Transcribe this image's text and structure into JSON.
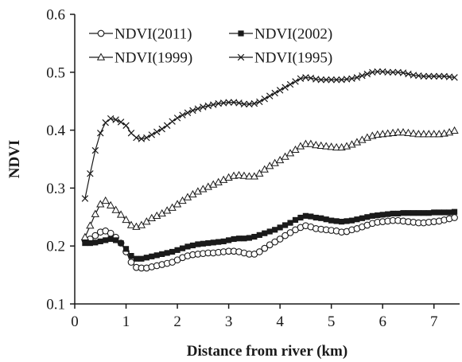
{
  "chart_data": {
    "type": "line",
    "title": "",
    "xlabel": "Distance from river (km)",
    "ylabel": "NDVI",
    "xlim": [
      0,
      7.5
    ],
    "ylim": [
      0.1,
      0.6
    ],
    "xticks": [
      0,
      1,
      2,
      3,
      4,
      5,
      6,
      7
    ],
    "xtick_labels": [
      "0",
      "1",
      "2",
      "3",
      "4",
      "5",
      "6",
      "7"
    ],
    "yticks": [
      0.1,
      0.2,
      0.3,
      0.4,
      0.5,
      0.6
    ],
    "ytick_labels": [
      "0.1",
      "0.2",
      "0.3",
      "0.4",
      "0.5",
      "0.6"
    ],
    "grid": false,
    "legend_position": "top-left",
    "x": [
      0.2,
      0.3,
      0.4,
      0.5,
      0.6,
      0.7,
      0.8,
      0.9,
      1.0,
      1.1,
      1.2,
      1.3,
      1.4,
      1.5,
      1.6,
      1.7,
      1.8,
      1.9,
      2.0,
      2.1,
      2.2,
      2.3,
      2.4,
      2.5,
      2.6,
      2.7,
      2.8,
      2.9,
      3.0,
      3.1,
      3.2,
      3.3,
      3.4,
      3.5,
      3.6,
      3.7,
      3.8,
      3.9,
      4.0,
      4.1,
      4.2,
      4.3,
      4.4,
      4.5,
      4.6,
      4.7,
      4.8,
      4.9,
      5.0,
      5.1,
      5.2,
      5.3,
      5.4,
      5.5,
      5.6,
      5.7,
      5.8,
      5.9,
      6.0,
      6.1,
      6.2,
      6.3,
      6.4,
      6.5,
      6.6,
      6.7,
      6.8,
      6.9,
      7.0,
      7.1,
      7.2,
      7.3,
      7.4
    ],
    "series": [
      {
        "name": "NDVI(2011)",
        "marker": "open-circle",
        "values": [
          0.21,
          0.212,
          0.218,
          0.224,
          0.226,
          0.222,
          0.215,
          0.205,
          0.19,
          0.172,
          0.163,
          0.162,
          0.162,
          0.164,
          0.166,
          0.168,
          0.17,
          0.172,
          0.176,
          0.18,
          0.183,
          0.185,
          0.186,
          0.187,
          0.188,
          0.188,
          0.189,
          0.19,
          0.191,
          0.191,
          0.19,
          0.188,
          0.186,
          0.186,
          0.19,
          0.196,
          0.202,
          0.207,
          0.212,
          0.218,
          0.223,
          0.228,
          0.232,
          0.235,
          0.233,
          0.23,
          0.229,
          0.228,
          0.227,
          0.226,
          0.224,
          0.225,
          0.228,
          0.23,
          0.233,
          0.236,
          0.239,
          0.241,
          0.242,
          0.243,
          0.244,
          0.244,
          0.243,
          0.242,
          0.241,
          0.24,
          0.24,
          0.241,
          0.242,
          0.243,
          0.245,
          0.247,
          0.249
        ]
      },
      {
        "name": "NDVI(2002)",
        "marker": "filled-square",
        "values": [
          0.205,
          0.205,
          0.206,
          0.208,
          0.21,
          0.212,
          0.21,
          0.205,
          0.195,
          0.183,
          0.178,
          0.178,
          0.18,
          0.182,
          0.184,
          0.186,
          0.188,
          0.19,
          0.193,
          0.196,
          0.199,
          0.201,
          0.203,
          0.204,
          0.205,
          0.206,
          0.207,
          0.208,
          0.21,
          0.212,
          0.213,
          0.213,
          0.214,
          0.216,
          0.219,
          0.222,
          0.225,
          0.228,
          0.232,
          0.236,
          0.24,
          0.245,
          0.249,
          0.252,
          0.251,
          0.249,
          0.248,
          0.246,
          0.244,
          0.243,
          0.242,
          0.243,
          0.244,
          0.246,
          0.248,
          0.25,
          0.252,
          0.253,
          0.254,
          0.255,
          0.256,
          0.256,
          0.257,
          0.257,
          0.257,
          0.257,
          0.257,
          0.257,
          0.258,
          0.258,
          0.258,
          0.258,
          0.259
        ]
      },
      {
        "name": "NDVI(1999)",
        "marker": "open-triangle",
        "values": [
          0.215,
          0.235,
          0.255,
          0.272,
          0.278,
          0.27,
          0.262,
          0.254,
          0.245,
          0.236,
          0.233,
          0.236,
          0.242,
          0.248,
          0.252,
          0.256,
          0.261,
          0.266,
          0.272,
          0.278,
          0.284,
          0.289,
          0.294,
          0.298,
          0.302,
          0.306,
          0.31,
          0.314,
          0.318,
          0.321,
          0.322,
          0.321,
          0.32,
          0.32,
          0.325,
          0.332,
          0.338,
          0.343,
          0.348,
          0.354,
          0.36,
          0.366,
          0.372,
          0.376,
          0.376,
          0.374,
          0.373,
          0.372,
          0.371,
          0.37,
          0.37,
          0.372,
          0.375,
          0.379,
          0.383,
          0.387,
          0.39,
          0.392,
          0.393,
          0.394,
          0.395,
          0.396,
          0.396,
          0.395,
          0.394,
          0.393,
          0.393,
          0.393,
          0.393,
          0.393,
          0.394,
          0.396,
          0.399
        ]
      },
      {
        "name": "NDVI(1995)",
        "marker": "x",
        "values": [
          0.282,
          0.325,
          0.365,
          0.395,
          0.413,
          0.42,
          0.418,
          0.414,
          0.408,
          0.395,
          0.387,
          0.385,
          0.387,
          0.392,
          0.397,
          0.402,
          0.408,
          0.415,
          0.421,
          0.426,
          0.43,
          0.434,
          0.437,
          0.44,
          0.442,
          0.444,
          0.446,
          0.447,
          0.448,
          0.448,
          0.447,
          0.445,
          0.445,
          0.446,
          0.449,
          0.454,
          0.459,
          0.464,
          0.469,
          0.474,
          0.479,
          0.484,
          0.489,
          0.491,
          0.49,
          0.488,
          0.487,
          0.487,
          0.487,
          0.487,
          0.487,
          0.488,
          0.489,
          0.491,
          0.494,
          0.497,
          0.5,
          0.501,
          0.501,
          0.5,
          0.5,
          0.5,
          0.499,
          0.497,
          0.495,
          0.494,
          0.493,
          0.493,
          0.493,
          0.493,
          0.493,
          0.492,
          0.491
        ]
      }
    ]
  },
  "legend_rows": [
    [
      "NDVI(2011)",
      "NDVI(2002)"
    ],
    [
      "NDVI(1999)",
      "NDVI(1995)"
    ]
  ]
}
